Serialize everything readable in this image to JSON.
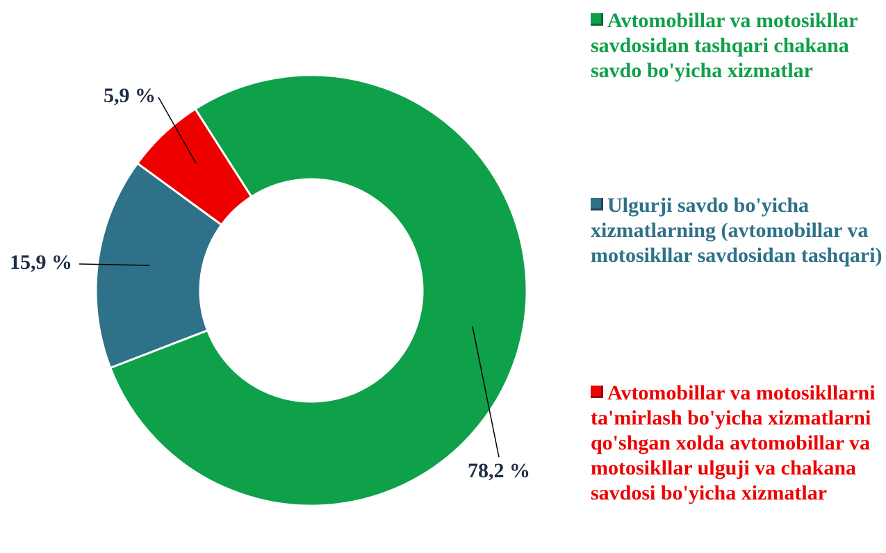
{
  "chart_data": {
    "type": "pie",
    "categories": [
      "Avtomobillar va motosikllar savdosidan tashqari chakana savdo bo'yicha xizmatlar",
      "Ulgurji savdo bo'yicha xizmatlarning (avtomobillar va motosikllar savdosidan tashqari)",
      "Avtomobillar va motosikllarni ta'mirlash bo'yicha xizmatlarni qo'shgan xolda avtomobillar va motosikllar ulguji va chakana savdosi bo'yicha xizmatlar"
    ],
    "values": [
      78.2,
      15.9,
      5.9
    ],
    "value_labels": [
      "78,2 %",
      "15,9 %",
      "5,9 %"
    ],
    "colors": [
      "#0fa04a",
      "#2e7189",
      "#ee0000"
    ]
  }
}
